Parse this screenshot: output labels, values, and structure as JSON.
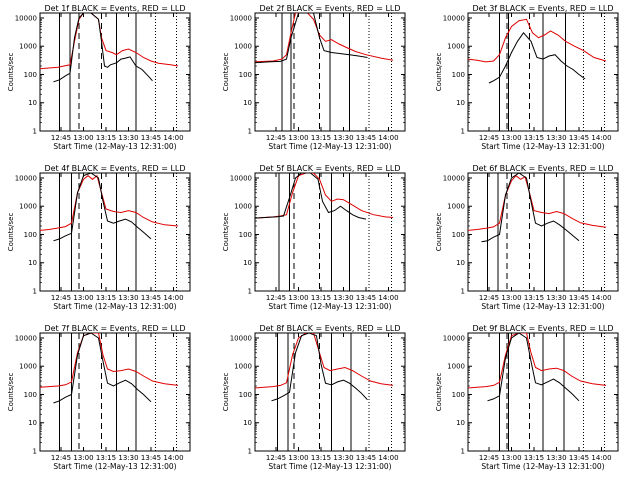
{
  "common": {
    "title_suffix": "BLACK = Events, RED = LLD",
    "xlabel": "Start Time (12-May-13 12:31:00)",
    "ylabel": "Counts/sec",
    "xticks": [
      "12:45",
      "13:00",
      "13:15",
      "13:30",
      "13:45",
      "14:00"
    ],
    "yticks": [
      "1",
      "10",
      "100",
      "1000",
      "10000"
    ],
    "colors": {
      "events": "#000000",
      "lld": "#e00000"
    }
  },
  "chart_data": [
    {
      "type": "line",
      "title": "Det 1f",
      "xlabel": "Start Time (12-May-13 12:31:00)",
      "ylabel": "Counts/sec",
      "xlim": [
        "12:31",
        "14:11"
      ],
      "ylim": [
        1,
        15000
      ],
      "yscale": "log",
      "solid_lines": [
        "12:44",
        "12:51",
        "13:22",
        "13:35"
      ],
      "dashed_lines": [
        "12:57",
        "13:12"
      ],
      "dotted_lines": [
        "13:48",
        "14:02"
      ],
      "series": [
        {
          "name": "BLACK = Events",
          "x": [
            "12:40",
            "12:44",
            "12:48",
            "12:51",
            "12:54",
            "12:57",
            "13:00",
            "13:05",
            "13:10",
            "13:12",
            "13:14",
            "13:16",
            "13:18",
            "13:22",
            "13:25",
            "13:28",
            "13:31",
            "13:35",
            "13:39",
            "13:43",
            "13:46"
          ],
          "y": [
            55,
            65,
            90,
            110,
            2000,
            10000,
            15000,
            15000,
            9000,
            1500,
            200,
            180,
            220,
            260,
            350,
            380,
            420,
            200,
            150,
            90,
            60
          ]
        },
        {
          "name": "RED = LLD",
          "x": [
            "12:31",
            "12:37",
            "12:43",
            "12:47",
            "12:51",
            "12:54",
            "12:57",
            "13:00",
            "13:05",
            "13:10",
            "13:12",
            "13:15",
            "13:19",
            "13:22",
            "13:26",
            "13:30",
            "13:35",
            "13:40",
            "13:45",
            "13:50",
            "13:58",
            "14:03"
          ],
          "y": [
            160,
            170,
            180,
            200,
            220,
            1500,
            9000,
            15000,
            15000,
            9000,
            2000,
            700,
            600,
            500,
            700,
            800,
            600,
            400,
            300,
            250,
            220,
            200
          ]
        }
      ]
    },
    {
      "type": "line",
      "title": "Det 2f",
      "xlabel": "Start Time (12-May-13 12:31:00)",
      "ylabel": "Counts/sec",
      "xlim": [
        "12:31",
        "14:11"
      ],
      "ylim": [
        1,
        15000
      ],
      "yscale": "log",
      "solid_lines": [
        "12:49",
        "12:55",
        "13:21",
        "13:34"
      ],
      "dashed_lines": [
        "12:57",
        "13:14"
      ],
      "dotted_lines": [
        "13:47",
        "14:02"
      ],
      "series": [
        {
          "name": "BLACK = Events",
          "x": [
            "12:31",
            "12:40",
            "12:48",
            "12:52",
            "12:55",
            "13:00",
            "13:05",
            "13:10",
            "13:14",
            "13:17",
            "13:22",
            "13:28",
            "13:34",
            "13:40",
            "13:46"
          ],
          "y": [
            260,
            280,
            290,
            350,
            2000,
            15000,
            15000,
            15000,
            2000,
            700,
            600,
            550,
            500,
            450,
            400
          ]
        },
        {
          "name": "RED = LLD",
          "x": [
            "12:31",
            "12:37",
            "12:43",
            "12:49",
            "12:52",
            "12:55",
            "12:58",
            "13:02",
            "13:06",
            "13:10",
            "13:14",
            "13:18",
            "13:22",
            "13:27",
            "13:32",
            "13:38",
            "13:45",
            "13:55",
            "14:03"
          ],
          "y": [
            280,
            290,
            300,
            350,
            500,
            3000,
            15000,
            15000,
            15000,
            9000,
            2500,
            1500,
            1700,
            1200,
            900,
            650,
            500,
            380,
            320
          ]
        }
      ]
    },
    {
      "type": "line",
      "title": "Det 3f",
      "xlabel": "Start Time (12-May-13 12:31:00)",
      "ylabel": "Counts/sec",
      "xlim": [
        "12:31",
        "14:11"
      ],
      "ylim": [
        1,
        15000
      ],
      "yscale": "log",
      "solid_lines": [
        "12:52",
        "12:58",
        "13:21",
        "13:36"
      ],
      "dashed_lines": [
        "12:57",
        "13:12"
      ],
      "dotted_lines": [
        "13:48",
        "14:02"
      ],
      "series": [
        {
          "name": "BLACK = Events",
          "x": [
            "12:45",
            "12:48",
            "12:52",
            "12:56",
            "13:00",
            "13:04",
            "13:08",
            "13:13",
            "13:17",
            "13:21",
            "13:25",
            "13:29",
            "13:33",
            "13:37",
            "13:41",
            "13:45",
            "13:49"
          ],
          "y": [
            50,
            60,
            80,
            200,
            600,
            1500,
            3000,
            1500,
            400,
            350,
            450,
            500,
            300,
            200,
            150,
            100,
            70
          ]
        },
        {
          "name": "RED = LLD",
          "x": [
            "12:31",
            "12:37",
            "12:43",
            "12:48",
            "12:52",
            "12:56",
            "13:00",
            "13:05",
            "13:10",
            "13:14",
            "13:18",
            "13:22",
            "13:26",
            "13:31",
            "13:36",
            "13:42",
            "13:48",
            "13:55",
            "14:03"
          ],
          "y": [
            350,
            320,
            280,
            300,
            500,
            2000,
            5000,
            8000,
            9000,
            3000,
            2000,
            2500,
            3500,
            2500,
            1500,
            1000,
            700,
            400,
            300
          ]
        }
      ]
    },
    {
      "type": "line",
      "title": "Det 4f",
      "xlabel": "Start Time (12-May-13 12:31:00)",
      "ylabel": "Counts/sec",
      "xlim": [
        "12:31",
        "14:11"
      ],
      "ylim": [
        1,
        15000
      ],
      "yscale": "log",
      "solid_lines": [
        "12:44",
        "12:52",
        "13:22",
        "13:35"
      ],
      "dashed_lines": [
        "12:57",
        "13:12"
      ],
      "dotted_lines": [
        "13:48",
        "14:02"
      ],
      "series": [
        {
          "name": "BLACK = Events",
          "x": [
            "12:40",
            "12:44",
            "12:48",
            "12:52",
            "12:56",
            "13:00",
            "13:05",
            "13:10",
            "13:13",
            "13:16",
            "13:20",
            "13:24",
            "13:28",
            "13:32",
            "13:36",
            "13:40",
            "13:45"
          ],
          "y": [
            60,
            70,
            90,
            110,
            3000,
            12000,
            15000,
            10000,
            1500,
            300,
            250,
            300,
            350,
            280,
            180,
            120,
            70
          ]
        },
        {
          "name": "RED = LLD",
          "x": [
            "12:31",
            "12:37",
            "12:43",
            "12:48",
            "12:52",
            "12:56",
            "13:00",
            "13:03",
            "13:06",
            "13:09",
            "13:12",
            "13:15",
            "13:20",
            "13:25",
            "13:30",
            "13:35",
            "13:40",
            "13:46",
            "13:54",
            "14:03"
          ],
          "y": [
            140,
            150,
            170,
            190,
            250,
            3000,
            9000,
            12000,
            9000,
            12000,
            3000,
            800,
            650,
            600,
            700,
            600,
            400,
            280,
            220,
            200
          ]
        }
      ]
    },
    {
      "type": "line",
      "title": "Det 5f",
      "xlabel": "Start Time (12-May-13 12:31:00)",
      "ylabel": "Counts/sec",
      "xlim": [
        "12:31",
        "14:11"
      ],
      "ylim": [
        1,
        15000
      ],
      "yscale": "log",
      "solid_lines": [
        "12:47",
        "12:54",
        "13:22",
        "13:34"
      ],
      "dashed_lines": [
        "12:57",
        "13:14"
      ],
      "dotted_lines": [
        "13:47",
        "14:02"
      ],
      "series": [
        {
          "name": "BLACK = Events",
          "x": [
            "12:31",
            "12:38",
            "12:45",
            "12:50",
            "12:54",
            "12:58",
            "13:02",
            "13:08",
            "13:13",
            "13:16",
            "13:20",
            "13:24",
            "13:28",
            "13:32",
            "13:36",
            "13:40",
            "13:45"
          ],
          "y": [
            380,
            400,
            420,
            450,
            2000,
            10000,
            15000,
            15000,
            9000,
            1500,
            600,
            700,
            1000,
            700,
            500,
            400,
            350
          ]
        },
        {
          "name": "RED = LLD",
          "x": [
            "12:31",
            "12:37",
            "12:43",
            "12:48",
            "12:52",
            "12:56",
            "13:00",
            "13:05",
            "13:10",
            "13:14",
            "13:18",
            "13:22",
            "13:26",
            "13:30",
            "13:36",
            "13:42",
            "13:50",
            "13:58",
            "14:03"
          ],
          "y": [
            380,
            400,
            420,
            450,
            500,
            3000,
            12000,
            15000,
            15000,
            9000,
            2500,
            1500,
            1800,
            1700,
            1100,
            700,
            500,
            420,
            400
          ]
        }
      ]
    },
    {
      "type": "line",
      "title": "Det 6f",
      "xlabel": "Start Time (12-May-13 12:31:00)",
      "ylabel": "Counts/sec",
      "xlim": [
        "12:31",
        "14:11"
      ],
      "ylim": [
        1,
        15000
      ],
      "yscale": "log",
      "solid_lines": [
        "12:44",
        "12:51",
        "13:22",
        "13:35"
      ],
      "dashed_lines": [
        "12:57",
        "13:12"
      ],
      "dotted_lines": [
        "13:48",
        "14:02"
      ],
      "series": [
        {
          "name": "BLACK = Events",
          "x": [
            "12:40",
            "12:44",
            "12:48",
            "12:52",
            "12:56",
            "13:00",
            "13:05",
            "13:10",
            "13:13",
            "13:16",
            "13:20",
            "13:24",
            "13:28",
            "13:32",
            "13:36",
            "13:40",
            "13:45"
          ],
          "y": [
            55,
            60,
            80,
            100,
            2500,
            10000,
            15000,
            10000,
            1500,
            250,
            200,
            250,
            300,
            220,
            150,
            100,
            60
          ]
        },
        {
          "name": "RED = LLD",
          "x": [
            "12:31",
            "12:37",
            "12:43",
            "12:48",
            "12:52",
            "12:56",
            "13:00",
            "13:03",
            "13:06",
            "13:09",
            "13:12",
            "13:15",
            "13:20",
            "13:25",
            "13:30",
            "13:35",
            "13:40",
            "13:46",
            "13:54",
            "14:03"
          ],
          "y": [
            140,
            150,
            165,
            185,
            250,
            2500,
            8000,
            12000,
            9000,
            11000,
            3000,
            700,
            600,
            550,
            650,
            550,
            380,
            260,
            210,
            180
          ]
        }
      ]
    },
    {
      "type": "line",
      "title": "Det 7f",
      "xlabel": "Start Time (12-May-13 12:31:00)",
      "ylabel": "Counts/sec",
      "xlim": [
        "12:31",
        "14:11"
      ],
      "ylim": [
        1,
        15000
      ],
      "yscale": "log",
      "solid_lines": [
        "12:44",
        "12:52",
        "13:22",
        "13:35"
      ],
      "dashed_lines": [
        "12:57",
        "13:12"
      ],
      "dotted_lines": [
        "13:48",
        "14:02"
      ],
      "series": [
        {
          "name": "BLACK = Events",
          "x": [
            "12:40",
            "12:44",
            "12:48",
            "12:52",
            "12:56",
            "13:00",
            "13:05",
            "13:10",
            "13:13",
            "13:16",
            "13:20",
            "13:24",
            "13:28",
            "13:32",
            "13:36",
            "13:40",
            "13:45"
          ],
          "y": [
            50,
            60,
            80,
            100,
            2500,
            12000,
            15000,
            10000,
            1500,
            250,
            200,
            260,
            320,
            240,
            150,
            100,
            55
          ]
        },
        {
          "name": "RED = LLD",
          "x": [
            "12:31",
            "12:37",
            "12:43",
            "12:48",
            "12:52",
            "12:56",
            "13:00",
            "13:05",
            "13:10",
            "13:13",
            "13:16",
            "13:20",
            "13:25",
            "13:30",
            "13:35",
            "13:40",
            "13:46",
            "13:54",
            "14:03"
          ],
          "y": [
            180,
            190,
            200,
            220,
            280,
            3000,
            12000,
            15000,
            15000,
            2500,
            800,
            650,
            700,
            800,
            650,
            450,
            300,
            240,
            210
          ]
        }
      ]
    },
    {
      "type": "line",
      "title": "Det 8f",
      "xlabel": "Start Time (12-May-13 12:31:00)",
      "ylabel": "Counts/sec",
      "xlim": [
        "12:31",
        "14:11"
      ],
      "ylim": [
        1,
        15000
      ],
      "yscale": "log",
      "solid_lines": [
        "12:46",
        "12:53",
        "13:22",
        "13:35"
      ],
      "dashed_lines": [
        "12:57",
        "13:14"
      ],
      "dotted_lines": [
        "13:47",
        "14:02"
      ],
      "series": [
        {
          "name": "BLACK = Events",
          "x": [
            "12:42",
            "12:46",
            "12:50",
            "12:54",
            "12:58",
            "13:02",
            "13:07",
            "13:12",
            "13:15",
            "13:18",
            "13:22",
            "13:26",
            "13:30",
            "13:34",
            "13:38",
            "13:42",
            "13:46"
          ],
          "y": [
            60,
            70,
            90,
            120,
            3000,
            12000,
            15000,
            12000,
            1200,
            250,
            220,
            280,
            320,
            250,
            170,
            110,
            65
          ]
        },
        {
          "name": "RED = LLD",
          "x": [
            "12:31",
            "12:37",
            "12:43",
            "12:48",
            "12:52",
            "12:56",
            "13:00",
            "13:05",
            "13:10",
            "13:14",
            "13:17",
            "13:21",
            "13:26",
            "13:31",
            "13:36",
            "13:42",
            "13:48",
            "13:55",
            "14:03"
          ],
          "y": [
            170,
            180,
            190,
            210,
            260,
            2500,
            10000,
            15000,
            15000,
            3000,
            900,
            700,
            800,
            900,
            700,
            450,
            300,
            240,
            210
          ]
        }
      ]
    },
    {
      "type": "line",
      "title": "Det 9f",
      "xlabel": "Start Time (12-May-13 12:31:00)",
      "ylabel": "Counts/sec",
      "xlim": [
        "12:31",
        "14:11"
      ],
      "ylim": [
        1,
        15000
      ],
      "yscale": "log",
      "solid_lines": [
        "12:52",
        "12:58",
        "13:21",
        "13:35"
      ],
      "dashed_lines": [
        "12:57",
        "13:12"
      ],
      "dotted_lines": [
        "13:48",
        "14:02"
      ],
      "series": [
        {
          "name": "BLACK = Events",
          "x": [
            "12:44",
            "12:48",
            "12:52",
            "12:56",
            "13:00",
            "13:05",
            "13:10",
            "13:13",
            "13:16",
            "13:20",
            "13:24",
            "13:28",
            "13:32",
            "13:36",
            "13:40",
            "13:45"
          ],
          "y": [
            60,
            70,
            90,
            2000,
            10000,
            15000,
            10000,
            1500,
            260,
            220,
            280,
            350,
            260,
            170,
            110,
            60
          ]
        },
        {
          "name": "RED = LLD",
          "x": [
            "12:31",
            "12:37",
            "12:43",
            "12:48",
            "12:52",
            "12:56",
            "13:00",
            "13:05",
            "13:10",
            "13:13",
            "13:16",
            "13:20",
            "13:25",
            "13:30",
            "13:35",
            "13:40",
            "13:46",
            "13:54",
            "14:03"
          ],
          "y": [
            170,
            180,
            190,
            210,
            270,
            2500,
            12000,
            15000,
            15000,
            3000,
            900,
            700,
            800,
            850,
            700,
            450,
            300,
            240,
            210
          ]
        }
      ]
    }
  ]
}
